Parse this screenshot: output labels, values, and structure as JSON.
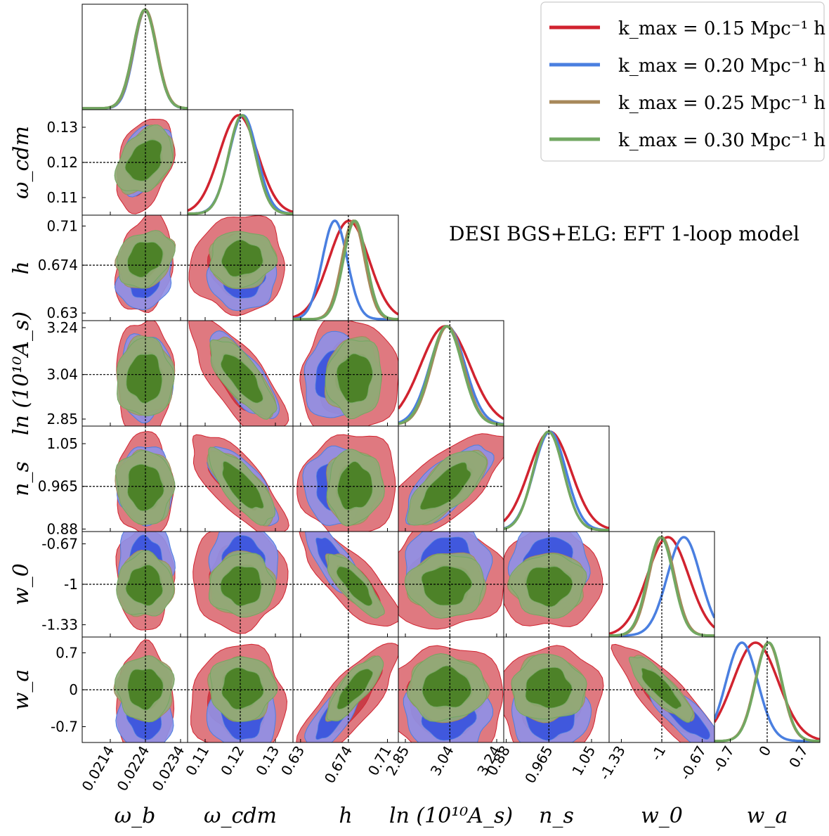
{
  "chart_data": {
    "type": "scatter",
    "title": "DESI BGS+ELG: EFT 1-loop model",
    "parameters": [
      {
        "key": "omega_b",
        "label": "ω_b",
        "fiducial": 0.0224,
        "range": [
          0.0206,
          0.0236
        ],
        "ticks": [
          0.0214,
          0.0224,
          0.0234
        ]
      },
      {
        "key": "omega_cdm",
        "label": "ω_cdm",
        "fiducial": 0.12,
        "range": [
          0.105,
          0.135
        ],
        "ticks": [
          0.11,
          0.12,
          0.13
        ]
      },
      {
        "key": "h",
        "label": "h",
        "fiducial": 0.674,
        "range": [
          0.623,
          0.72
        ],
        "ticks": [
          0.63,
          0.674,
          0.71
        ]
      },
      {
        "key": "lnAs",
        "label": "ln (10¹⁰A_s)",
        "fiducial": 3.04,
        "range": [
          2.82,
          3.27
        ],
        "ticks": [
          2.85,
          3.04,
          3.24
        ]
      },
      {
        "key": "n_s",
        "label": "n_s",
        "fiducial": 0.965,
        "range": [
          0.875,
          1.085
        ],
        "ticks": [
          0.88,
          0.965,
          1.05
        ]
      },
      {
        "key": "w0",
        "label": "w_0",
        "fiducial": -1.0,
        "range": [
          -1.43,
          -0.57
        ],
        "ticks": [
          -1.33,
          -1,
          -0.67
        ]
      },
      {
        "key": "wa",
        "label": "w_a",
        "fiducial": 0.0,
        "range": [
          -1.0,
          1.0
        ],
        "ticks": [
          -0.7,
          0,
          0.7
        ]
      }
    ],
    "tick_labels": [
      [
        "0.0214",
        "0.0224",
        "0.0234"
      ],
      [
        "0.11",
        "0.12",
        "0.13"
      ],
      [
        "0.63",
        "0.674",
        "0.71"
      ],
      [
        "2.85",
        "3.04",
        "3.24"
      ],
      [
        "0.88",
        "0.965",
        "1.05"
      ],
      [
        "-1.33",
        "-1",
        "-0.67"
      ],
      [
        "-0.7",
        "0",
        "0.7"
      ]
    ],
    "series": [
      {
        "name": "k_max = 0.15 Mpc⁻¹ h",
        "color": "#d1232f",
        "mean": [
          0.02238,
          0.1195,
          0.6745,
          3.02,
          0.967,
          -0.95,
          -0.22
        ],
        "sigma": [
          0.00033,
          0.0055,
          0.0185,
          0.105,
          0.042,
          0.17,
          0.43
        ]
      },
      {
        "name": "k_max = 0.20 Mpc⁻¹ h",
        "color": "#4a7fe0",
        "mean": [
          0.0224,
          0.1208,
          0.6615,
          3.03,
          0.967,
          -0.82,
          -0.48
        ],
        "sigma": [
          0.00032,
          0.004,
          0.0115,
          0.075,
          0.032,
          0.135,
          0.3
        ]
      },
      {
        "name": "k_max = 0.25 Mpc⁻¹ h",
        "color": "#a7885a",
        "mean": [
          0.0224,
          0.1205,
          0.6785,
          3.03,
          0.964,
          -1.0,
          0.02
        ],
        "sigma": [
          0.00033,
          0.0038,
          0.0105,
          0.068,
          0.03,
          0.105,
          0.25
        ]
      },
      {
        "name": "k_max = 0.30 Mpc⁻¹ h",
        "color": "#72a862",
        "mean": [
          0.02238,
          0.1205,
          0.68,
          3.025,
          0.964,
          -1.01,
          0.03
        ],
        "sigma": [
          0.00033,
          0.0038,
          0.0105,
          0.068,
          0.03,
          0.105,
          0.25
        ]
      }
    ],
    "correlations": [
      [
        0,
        1,
        0.35
      ],
      [
        0,
        2,
        0.25
      ],
      [
        0,
        3,
        0.0
      ],
      [
        0,
        4,
        -0.05
      ],
      [
        0,
        5,
        0.0
      ],
      [
        0,
        6,
        0.0
      ],
      [
        1,
        2,
        0.05
      ],
      [
        1,
        3,
        -0.75
      ],
      [
        1,
        4,
        -0.75
      ],
      [
        1,
        5,
        0.0
      ],
      [
        1,
        6,
        0.0
      ],
      [
        2,
        3,
        0.05
      ],
      [
        2,
        4,
        0.05
      ],
      [
        2,
        5,
        -0.8
      ],
      [
        2,
        6,
        0.8
      ],
      [
        3,
        4,
        0.7
      ],
      [
        3,
        5,
        0.0
      ],
      [
        3,
        6,
        0.0
      ],
      [
        4,
        5,
        0.0
      ],
      [
        4,
        6,
        0.0
      ],
      [
        5,
        6,
        -0.85
      ]
    ],
    "fill_colors": {
      "red_outer": "#dc6e75",
      "red_inner": "#c73a44",
      "blue_outer": "#8f90e6",
      "blue_inner": "#3b55dd",
      "olive_outer": "#93a876",
      "olive_inner": "#4a7f24"
    },
    "legend_position": "top-right",
    "grid": false
  }
}
